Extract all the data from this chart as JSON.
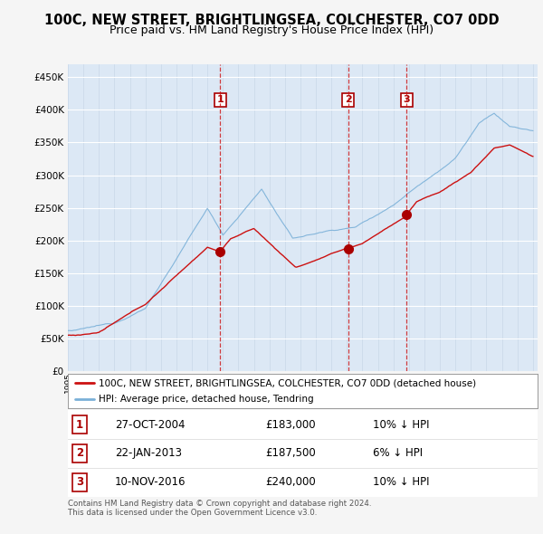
{
  "title": "100C, NEW STREET, BRIGHTLINGSEA, COLCHESTER, CO7 0DD",
  "subtitle": "Price paid vs. HM Land Registry's House Price Index (HPI)",
  "ylim": [
    0,
    470000
  ],
  "yticks": [
    0,
    50000,
    100000,
    150000,
    200000,
    250000,
    300000,
    350000,
    400000,
    450000
  ],
  "ytick_labels": [
    "£0",
    "£50K",
    "£100K",
    "£150K",
    "£200K",
    "£250K",
    "£300K",
    "£350K",
    "£400K",
    "£450K"
  ],
  "background_color": "#f5f5f5",
  "plot_bg_color": "#dce8f5",
  "grid_color": "#c8d8e8",
  "red_line_color": "#cc1111",
  "blue_line_color": "#7ab0d8",
  "sale_marker_color": "#aa0000",
  "title_fontsize": 10.5,
  "subtitle_fontsize": 9,
  "tick_fontsize": 7.5,
  "legend_entries": [
    "100C, NEW STREET, BRIGHTLINGSEA, COLCHESTER, CO7 0DD (detached house)",
    "HPI: Average price, detached house, Tendring"
  ],
  "transactions": [
    {
      "num": 1,
      "date": "27-OCT-2004",
      "price": "£183,000",
      "hpi_diff": "10% ↓ HPI"
    },
    {
      "num": 2,
      "date": "22-JAN-2013",
      "price": "£187,500",
      "hpi_diff": "6% ↓ HPI"
    },
    {
      "num": 3,
      "date": "10-NOV-2016",
      "price": "£240,000",
      "hpi_diff": "10% ↓ HPI"
    }
  ],
  "footer": "Contains HM Land Registry data © Crown copyright and database right 2024.\nThis data is licensed under the Open Government Licence v3.0.",
  "sale_years": [
    2004.83,
    2013.07,
    2016.86
  ],
  "sale_prices": [
    183000,
    187500,
    240000
  ]
}
